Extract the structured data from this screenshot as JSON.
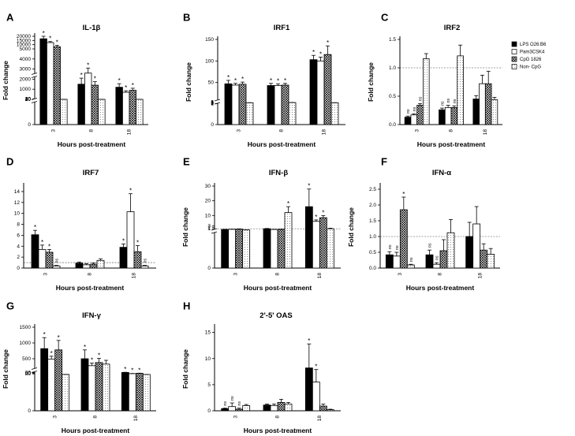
{
  "colors": {
    "bar_outline": "#000000",
    "series_fill": [
      "#000000",
      "#ffffff",
      "#999999",
      "#ffffff"
    ]
  },
  "legend": {
    "location": "right of panel C",
    "entries": [
      "LPS O26:B6",
      "Pam3CSK4",
      "CpG 1826",
      "Non- CpG"
    ],
    "patterns": [
      "solid",
      "open",
      "crosshatch",
      "open"
    ]
  },
  "chart_data": [
    {
      "panel": "A",
      "type": "bar",
      "title": "IL-1β",
      "xlabel": "Hours post-treatment",
      "ylabel": "Fold change",
      "categories": [
        "3",
        "8",
        "18"
      ],
      "yscale": "broken",
      "yticks": [
        "0",
        "10",
        "20",
        "30",
        "40",
        "1000",
        "2000",
        "3000",
        "4000",
        "5000",
        "10000",
        "15000",
        "20000"
      ],
      "series": [
        {
          "name": "LPS O26:B6",
          "values": [
            17000,
            1500,
            1200
          ],
          "errors": [
            3000,
            600,
            350
          ]
        },
        {
          "name": "Pam3CSK4",
          "values": [
            12500,
            2600,
            700
          ],
          "errors": [
            1200,
            500,
            150
          ]
        },
        {
          "name": "CpG 1826",
          "values": [
            7500,
            1400,
            900
          ],
          "errors": [
            1800,
            350,
            200
          ]
        },
        {
          "name": "Non- CpG",
          "values": [
            2,
            2,
            2
          ],
          "errors": [
            0.5,
            0.5,
            0.5
          ]
        }
      ],
      "annotations": [
        [
          "*",
          "*",
          "*",
          ""
        ],
        [
          "*",
          "*",
          "*",
          ""
        ],
        [
          "*",
          "*",
          "*",
          ""
        ]
      ]
    },
    {
      "panel": "B",
      "type": "bar",
      "title": "IRF1",
      "xlabel": "Hours post-treatment",
      "ylabel": "Fold change",
      "categories": [
        "3",
        "8",
        "18"
      ],
      "yscale": "broken",
      "yticks": [
        "0",
        "1",
        "2",
        "3",
        "4",
        "5",
        "50",
        "100",
        "150"
      ],
      "series": [
        {
          "name": "LPS O26:B6",
          "values": [
            47,
            43,
            103
          ],
          "errors": [
            8,
            5,
            10
          ]
        },
        {
          "name": "Pam3CSK4",
          "values": [
            44,
            43,
            100
          ],
          "errors": [
            4,
            4,
            9
          ]
        },
        {
          "name": "CpG 1826",
          "values": [
            46,
            44,
            115
          ],
          "errors": [
            5,
            4,
            20
          ]
        },
        {
          "name": "Non- CpG",
          "values": [
            3,
            3.5,
            3
          ],
          "errors": [
            0.3,
            0.3,
            0.3
          ]
        }
      ],
      "annotations": [
        [
          "*",
          "*",
          "*",
          ""
        ],
        [
          "*",
          "*",
          "*",
          ""
        ],
        [
          "*",
          "*",
          "*",
          ""
        ]
      ]
    },
    {
      "panel": "C",
      "type": "bar",
      "title": "IRF2",
      "xlabel": "Hours post-treatment",
      "ylabel": "Fold change",
      "categories": [
        "3",
        "8",
        "18"
      ],
      "ylim": [
        0,
        1.5
      ],
      "yticks": [
        "0.0",
        "0.5",
        "1.0",
        "1.5"
      ],
      "reference_line": 1.0,
      "series": [
        {
          "name": "LPS O26:B6",
          "values": [
            0.13,
            0.26,
            0.45
          ],
          "errors": [
            0.02,
            0.03,
            0.06
          ]
        },
        {
          "name": "Pam3CSK4",
          "values": [
            0.17,
            0.3,
            0.72
          ],
          "errors": [
            0.02,
            0.04,
            0.15
          ]
        },
        {
          "name": "CpG 1826",
          "values": [
            0.34,
            0.3,
            0.72
          ],
          "errors": [
            0.03,
            0.03,
            0.22
          ]
        },
        {
          "name": "Non- CpG",
          "values": [
            1.16,
            1.21,
            0.44
          ],
          "errors": [
            0.09,
            0.19,
            0.04
          ]
        }
      ],
      "annotations": [
        [
          "ns",
          "ns",
          "ns",
          ""
        ],
        [
          "ns",
          "ns",
          "ns",
          ""
        ],
        [
          "",
          "",
          "",
          ""
        ]
      ]
    },
    {
      "panel": "D",
      "type": "bar",
      "title": "IRF7",
      "xlabel": "Hours post-treatment",
      "ylabel": "Fold change",
      "categories": [
        "3",
        "8",
        "18"
      ],
      "ylim": [
        0,
        15
      ],
      "yticks": [
        "0",
        "2",
        "4",
        "6",
        "8",
        "10",
        "12",
        "14"
      ],
      "reference_line": 1.0,
      "series": [
        {
          "name": "LPS O26:B6",
          "values": [
            6.1,
            0.9,
            3.8
          ],
          "errors": [
            0.8,
            0.2,
            0.6
          ]
        },
        {
          "name": "Pam3CSK4",
          "values": [
            3.4,
            0.6,
            10.3
          ],
          "errors": [
            0.8,
            0.2,
            3.3
          ]
        },
        {
          "name": "CpG 1826",
          "values": [
            2.9,
            0.7,
            3.0
          ],
          "errors": [
            0.5,
            0.2,
            1.1
          ]
        },
        {
          "name": "Non- CpG",
          "values": [
            0.4,
            1.4,
            0.4
          ],
          "errors": [
            0.1,
            0.3,
            0.1
          ]
        }
      ],
      "annotations": [
        [
          "*",
          "*",
          "*",
          "ns"
        ],
        [
          "",
          "",
          "",
          ""
        ],
        [
          "*",
          "*",
          "*",
          "ns"
        ]
      ]
    },
    {
      "panel": "E",
      "type": "bar",
      "title": "IFN-β",
      "xlabel": "Hours post-treatment",
      "ylabel": "Fold change",
      "categories": [
        "3",
        "8",
        "18"
      ],
      "yscale": "broken",
      "reference_line": 1.0,
      "yticks": [
        "0",
        "1",
        "2",
        "3",
        "10",
        "20",
        "30"
      ],
      "series": [
        {
          "name": "LPS O26:B6",
          "values": [
            0.5,
            1.0,
            16
          ],
          "errors": [
            0.1,
            0.2,
            12
          ]
        },
        {
          "name": "Pam3CSK4",
          "values": [
            0.6,
            0.5,
            6
          ],
          "errors": [
            0.1,
            0.1,
            1
          ]
        },
        {
          "name": "CpG 1826",
          "values": [
            0.7,
            0.6,
            8.5
          ],
          "errors": [
            0.2,
            0.1,
            1.5
          ]
        },
        {
          "name": "Non- CpG",
          "values": [
            0.2,
            12,
            1.0
          ],
          "errors": [
            0.05,
            4,
            0.4
          ]
        }
      ],
      "annotations": [
        [
          "",
          "",
          "",
          ""
        ],
        [
          "",
          "",
          "",
          "*"
        ],
        [
          "*",
          "*",
          "*",
          ""
        ]
      ]
    },
    {
      "panel": "F",
      "type": "bar",
      "title": "IFN-α",
      "xlabel": "Hours post-treatment",
      "ylabel": "Fold change",
      "categories": [
        "3",
        "8",
        "18"
      ],
      "ylim": [
        0,
        2.6
      ],
      "yticks": [
        "0.0",
        "0.5",
        "1.0",
        "1.5",
        "2.0",
        "2.5"
      ],
      "reference_line": 1.0,
      "series": [
        {
          "name": "LPS O26:B6",
          "values": [
            0.42,
            0.42,
            1.0
          ],
          "errors": [
            0.1,
            0.15,
            0.45
          ]
        },
        {
          "name": "Pam3CSK4",
          "values": [
            0.38,
            0.12,
            1.4
          ],
          "errors": [
            0.12,
            0.05,
            0.55
          ]
        },
        {
          "name": "CpG 1826",
          "values": [
            1.85,
            0.55,
            0.57
          ],
          "errors": [
            0.4,
            0.35,
            0.2
          ]
        },
        {
          "name": "Non- CpG",
          "values": [
            0.1,
            1.12,
            0.44
          ],
          "errors": [
            0.02,
            0.42,
            0.18
          ]
        }
      ],
      "annotations": [
        [
          "ns",
          "ns",
          "*",
          "ns"
        ],
        [
          "ns",
          "ns",
          "",
          ""
        ],
        [
          "",
          "",
          "",
          ""
        ]
      ]
    },
    {
      "panel": "G",
      "type": "bar",
      "title": "IFN-γ",
      "xlabel": "Hours post-treatment",
      "ylabel": "Fold change",
      "categories": [
        "3",
        "8",
        "18"
      ],
      "yscale": "broken",
      "yticks": [
        "0",
        "20",
        "40",
        "60",
        "500",
        "1000",
        "1500"
      ],
      "series": [
        {
          "name": "LPS O26:B6",
          "values": [
            820,
            500,
            65
          ],
          "errors": [
            350,
            280,
            6
          ]
        },
        {
          "name": "Pam3CSK4",
          "values": [
            490,
            280,
            27
          ],
          "errors": [
            90,
            80,
            6
          ]
        },
        {
          "name": "CpG 1826",
          "values": [
            780,
            380,
            37
          ],
          "errors": [
            300,
            130,
            6
          ]
        },
        {
          "name": "Non- CpG",
          "values": [
            3,
            330,
            1.5
          ],
          "errors": [
            0.5,
            120,
            0.3
          ]
        }
      ],
      "annotations": [
        [
          "*",
          "*",
          "*",
          ""
        ],
        [
          "*",
          "*",
          "*",
          ""
        ],
        [
          "*",
          "*",
          "*",
          ""
        ]
      ]
    },
    {
      "panel": "H",
      "type": "bar",
      "title": "2'-5' OAS",
      "xlabel": "Hours post-treatment",
      "ylabel": "Fold change",
      "categories": [
        "3",
        "8",
        "18"
      ],
      "ylim": [
        0,
        16
      ],
      "yticks": [
        "0",
        "5",
        "10",
        "15"
      ],
      "series": [
        {
          "name": "LPS O26:B6",
          "values": [
            0.4,
            1.1,
            8.2
          ],
          "errors": [
            0.1,
            0.2,
            4.6
          ]
        },
        {
          "name": "Pam3CSK4",
          "values": [
            0.8,
            1.0,
            5.5
          ],
          "errors": [
            0.7,
            0.3,
            2.4
          ]
        },
        {
          "name": "CpG 1826",
          "values": [
            0.3,
            1.6,
            0.9
          ],
          "errors": [
            0.2,
            0.6,
            0.4
          ]
        },
        {
          "name": "Non- CpG",
          "values": [
            1.0,
            1.3,
            0.2
          ],
          "errors": [
            0.2,
            0.3,
            0.1
          ]
        }
      ],
      "annotations": [
        [
          "ns",
          "ns",
          "ns",
          ""
        ],
        [
          "",
          "",
          "",
          ""
        ],
        [
          "*",
          "*",
          "",
          ""
        ]
      ]
    }
  ]
}
